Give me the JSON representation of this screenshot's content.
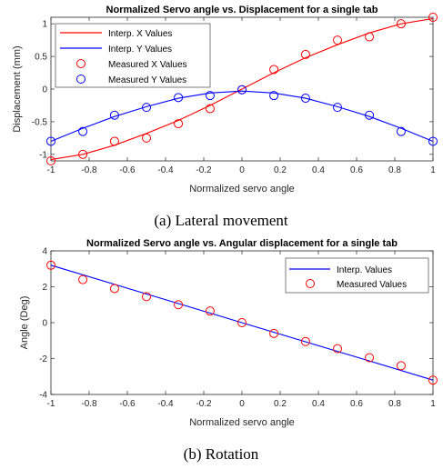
{
  "chart_data": [
    {
      "type": "line",
      "title": "Normalized Servo angle vs. Displacement for a single tab",
      "xlabel": "Normalized servo angle",
      "ylabel": "Displacement (mm)",
      "caption": "(a) Lateral movement",
      "xlim": [
        -1,
        1
      ],
      "ylim": [
        -1.1,
        1.1
      ],
      "xticks": [
        "-1",
        "-0.8",
        "-0.6",
        "-0.4",
        "-0.2",
        "0",
        "0.2",
        "0.4",
        "0.6",
        "0.8",
        "1"
      ],
      "yticks": [
        "-1",
        "-0.5",
        "0",
        "0.5",
        "1"
      ],
      "legend_position": "top-left",
      "grid": false,
      "colors": {
        "x": "#ff0000",
        "y": "#0000ff"
      },
      "series": [
        {
          "name": "Interp. X Values",
          "style": "line",
          "color": "#ff0000",
          "x": [
            -1,
            -0.833,
            -0.667,
            -0.5,
            -0.333,
            -0.167,
            0,
            0.167,
            0.333,
            0.5,
            0.667,
            0.833,
            1
          ],
          "values": [
            -1.08,
            -1.0,
            -0.86,
            -0.68,
            -0.48,
            -0.25,
            0,
            0.25,
            0.48,
            0.68,
            0.86,
            1.0,
            1.08
          ]
        },
        {
          "name": "Interp. Y Values",
          "style": "line",
          "color": "#0000ff",
          "x": [
            -1,
            -0.833,
            -0.667,
            -0.5,
            -0.333,
            -0.167,
            0,
            0.167,
            0.333,
            0.5,
            0.667,
            0.833,
            1
          ],
          "values": [
            -0.8,
            -0.6,
            -0.42,
            -0.27,
            -0.14,
            -0.06,
            -0.03,
            -0.06,
            -0.14,
            -0.27,
            -0.42,
            -0.6,
            -0.8
          ]
        },
        {
          "name": "Measured X Values",
          "style": "marker",
          "color": "#ff0000",
          "x": [
            -1,
            -0.833,
            -0.667,
            -0.5,
            -0.333,
            -0.167,
            0,
            0.167,
            0.333,
            0.5,
            0.667,
            0.833,
            1
          ],
          "values": [
            -1.1,
            -1.0,
            -0.8,
            -0.75,
            -0.53,
            -0.3,
            -0.01,
            0.3,
            0.53,
            0.75,
            0.8,
            1.0,
            1.1
          ]
        },
        {
          "name": "Measured Y Values",
          "style": "marker",
          "color": "#0000ff",
          "x": [
            -1,
            -0.833,
            -0.667,
            -0.5,
            -0.333,
            -0.167,
            0,
            0.167,
            0.333,
            0.5,
            0.667,
            0.833,
            1
          ],
          "values": [
            -0.8,
            -0.65,
            -0.4,
            -0.28,
            -0.13,
            -0.1,
            -0.01,
            -0.1,
            -0.14,
            -0.28,
            -0.4,
            -0.65,
            -0.8
          ]
        }
      ]
    },
    {
      "type": "line",
      "title": "Normalized Servo angle vs. Angular displacement for a single tab",
      "xlabel": "Normalized servo angle",
      "ylabel": "Angle (Deg)",
      "caption": "(b) Rotation",
      "xlim": [
        -1,
        1
      ],
      "ylim": [
        -4,
        4
      ],
      "xticks": [
        "-1",
        "-0.8",
        "-0.6",
        "-0.4",
        "-0.2",
        "0",
        "0.2",
        "0.4",
        "0.6",
        "0.8",
        "1"
      ],
      "yticks": [
        "-4",
        "-2",
        "0",
        "2",
        "4"
      ],
      "legend_position": "top-right",
      "grid": false,
      "colors": {
        "interp": "#0000ff",
        "measured": "#ff0000"
      },
      "series": [
        {
          "name": "Interp. Values",
          "style": "line",
          "color": "#0000ff",
          "x": [
            -1,
            1
          ],
          "values": [
            3.2,
            -3.2
          ]
        },
        {
          "name": "Measured Values",
          "style": "marker",
          "color": "#ff0000",
          "x": [
            -1,
            -0.833,
            -0.667,
            -0.5,
            -0.333,
            -0.167,
            0,
            0.167,
            0.333,
            0.5,
            0.667,
            0.833,
            1
          ],
          "values": [
            3.2,
            2.4,
            1.9,
            1.45,
            1.0,
            0.65,
            0.0,
            -0.6,
            -1.05,
            -1.45,
            -1.95,
            -2.4,
            -3.2
          ]
        }
      ]
    }
  ]
}
